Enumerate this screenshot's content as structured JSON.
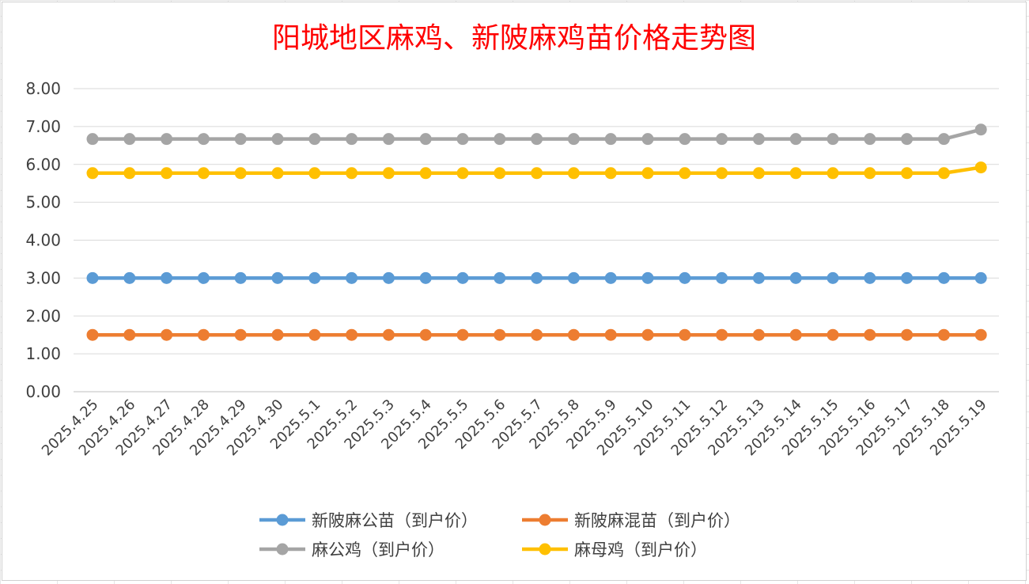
{
  "chart_data": {
    "type": "line",
    "title": "阳城地区麻鸡、新陂麻鸡苗价格走势图",
    "xlabel": "",
    "ylabel": "",
    "ylim": [
      0,
      8
    ],
    "yticks": [
      "0.00",
      "1.00",
      "2.00",
      "3.00",
      "4.00",
      "5.00",
      "6.00",
      "7.00",
      "8.00"
    ],
    "grid": true,
    "legend_position": "bottom",
    "categories": [
      "2025.4.25",
      "2025.4.26",
      "2025.4.27",
      "2025.4.28",
      "2025.4.29",
      "2025.4.30",
      "2025.5.1",
      "2025.5.2",
      "2025.5.3",
      "2025.5.4",
      "2025.5.5",
      "2025.5.6",
      "2025.5.7",
      "2025.5.8",
      "2025.5.9",
      "2025.5.10",
      "2025.5.11",
      "2025.5.12",
      "2025.5.13",
      "2025.5.14",
      "2025.5.15",
      "2025.5.16",
      "2025.5.17",
      "2025.5.18",
      "2025.5.19"
    ],
    "series": [
      {
        "name": "新陂麻公苗（到户价）",
        "color": "#5b9bd5",
        "values": [
          3.0,
          3.0,
          3.0,
          3.0,
          3.0,
          3.0,
          3.0,
          3.0,
          3.0,
          3.0,
          3.0,
          3.0,
          3.0,
          3.0,
          3.0,
          3.0,
          3.0,
          3.0,
          3.0,
          3.0,
          3.0,
          3.0,
          3.0,
          3.0,
          3.0
        ]
      },
      {
        "name": "新陂麻混苗（到户价）",
        "color": "#ed7d31",
        "values": [
          1.5,
          1.5,
          1.5,
          1.5,
          1.5,
          1.5,
          1.5,
          1.5,
          1.5,
          1.5,
          1.5,
          1.5,
          1.5,
          1.5,
          1.5,
          1.5,
          1.5,
          1.5,
          1.5,
          1.5,
          1.5,
          1.5,
          1.5,
          1.5,
          1.5
        ]
      },
      {
        "name": "麻公鸡（到户价）",
        "color": "#a5a5a5",
        "values": [
          6.67,
          6.67,
          6.67,
          6.67,
          6.67,
          6.67,
          6.67,
          6.67,
          6.67,
          6.67,
          6.67,
          6.67,
          6.67,
          6.67,
          6.67,
          6.67,
          6.67,
          6.67,
          6.67,
          6.67,
          6.67,
          6.67,
          6.67,
          6.67,
          6.92
        ]
      },
      {
        "name": "麻母鸡（到户价）",
        "color": "#ffc000",
        "values": [
          5.77,
          5.77,
          5.77,
          5.77,
          5.77,
          5.77,
          5.77,
          5.77,
          5.77,
          5.77,
          5.77,
          5.77,
          5.77,
          5.77,
          5.77,
          5.77,
          5.77,
          5.77,
          5.77,
          5.77,
          5.77,
          5.77,
          5.77,
          5.77,
          5.92
        ]
      }
    ]
  }
}
